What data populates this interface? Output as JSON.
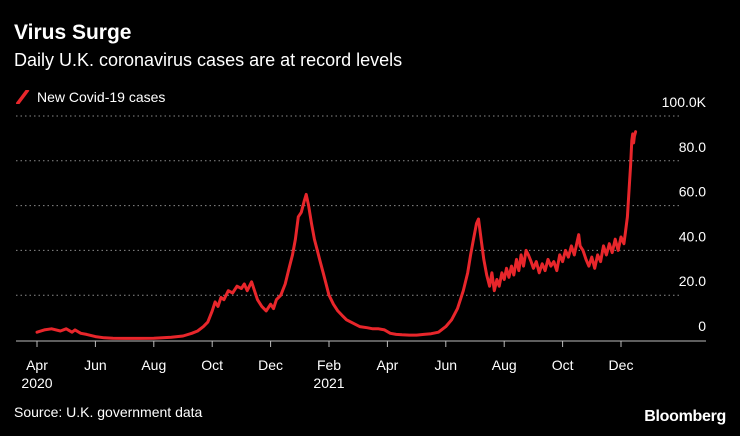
{
  "header": {
    "title": "Virus Surge",
    "subtitle": "Daily U.K. coronavirus cases are at record levels"
  },
  "footer": {
    "source": "Source: U.K. government data",
    "brand": "Bloomberg"
  },
  "colors": {
    "background": "#000000",
    "series": "#e8262b",
    "text": "#ffffff",
    "grid": "#8a8a8a"
  },
  "chart_data": {
    "type": "line",
    "title": "Virus Surge",
    "subtitle": "Daily U.K. coronavirus cases are at record levels",
    "xlabel": "",
    "ylabel": "",
    "y_unit": "thousands of cases",
    "ylim": [
      0,
      100
    ],
    "grid": true,
    "y_axis_side": "right",
    "legend": "top-left",
    "y_ticks": [
      {
        "value": 0,
        "label": "0"
      },
      {
        "value": 20,
        "label": "20.0"
      },
      {
        "value": 40,
        "label": "40.0"
      },
      {
        "value": 60,
        "label": "60.0"
      },
      {
        "value": 80,
        "label": "80.0"
      },
      {
        "value": 100,
        "label": "100.0K"
      }
    ],
    "x_ticks": [
      {
        "month": 0,
        "label": "Apr",
        "year": "2020"
      },
      {
        "month": 2,
        "label": "Jun",
        "year": ""
      },
      {
        "month": 4,
        "label": "Aug",
        "year": ""
      },
      {
        "month": 6,
        "label": "Oct",
        "year": ""
      },
      {
        "month": 8,
        "label": "Dec",
        "year": ""
      },
      {
        "month": 10,
        "label": "Feb",
        "year": "2021"
      },
      {
        "month": 12,
        "label": "Apr",
        "year": ""
      },
      {
        "month": 14,
        "label": "Jun",
        "year": ""
      },
      {
        "month": 16,
        "label": "Aug",
        "year": ""
      },
      {
        "month": 18,
        "label": "Oct",
        "year": ""
      },
      {
        "month": 20,
        "label": "Dec",
        "year": ""
      }
    ],
    "xlim_months": [
      0,
      21.3
    ],
    "series": [
      {
        "name": "New Covid-19 cases",
        "color": "#e8262b",
        "note": "x = months since 1 Apr 2020, y = daily new cases in thousands",
        "points": [
          [
            0.0,
            3.5
          ],
          [
            0.25,
            4.5
          ],
          [
            0.5,
            5.0
          ],
          [
            0.8,
            4.0
          ],
          [
            1.0,
            5.0
          ],
          [
            1.2,
            3.5
          ],
          [
            1.3,
            4.5
          ],
          [
            1.5,
            3.0
          ],
          [
            1.7,
            2.5
          ],
          [
            2.0,
            1.5
          ],
          [
            2.3,
            1.0
          ],
          [
            2.6,
            0.8
          ],
          [
            3.0,
            0.7
          ],
          [
            3.5,
            0.7
          ],
          [
            4.0,
            0.8
          ],
          [
            4.3,
            1.0
          ],
          [
            4.6,
            1.2
          ],
          [
            5.0,
            1.8
          ],
          [
            5.3,
            3.0
          ],
          [
            5.5,
            4.0
          ],
          [
            5.7,
            6.0
          ],
          [
            5.85,
            8.0
          ],
          [
            6.0,
            13.0
          ],
          [
            6.1,
            17.0
          ],
          [
            6.2,
            15.0
          ],
          [
            6.3,
            19.0
          ],
          [
            6.4,
            18.0
          ],
          [
            6.55,
            22.0
          ],
          [
            6.7,
            21.0
          ],
          [
            6.85,
            24.0
          ],
          [
            7.0,
            23.0
          ],
          [
            7.1,
            25.0
          ],
          [
            7.2,
            22.0
          ],
          [
            7.35,
            26.0
          ],
          [
            7.45,
            22.0
          ],
          [
            7.55,
            18.0
          ],
          [
            7.7,
            15.0
          ],
          [
            7.85,
            13.0
          ],
          [
            8.0,
            16.0
          ],
          [
            8.1,
            14.0
          ],
          [
            8.2,
            18.0
          ],
          [
            8.35,
            20.0
          ],
          [
            8.5,
            25.0
          ],
          [
            8.65,
            33.0
          ],
          [
            8.75,
            38.0
          ],
          [
            8.85,
            45.0
          ],
          [
            8.95,
            55.0
          ],
          [
            9.05,
            57.0
          ],
          [
            9.15,
            62.0
          ],
          [
            9.22,
            65.0
          ],
          [
            9.3,
            60.0
          ],
          [
            9.4,
            52.0
          ],
          [
            9.5,
            45.0
          ],
          [
            9.6,
            40.0
          ],
          [
            9.7,
            35.0
          ],
          [
            9.8,
            30.0
          ],
          [
            9.9,
            25.0
          ],
          [
            10.0,
            20.0
          ],
          [
            10.15,
            16.0
          ],
          [
            10.3,
            13.0
          ],
          [
            10.45,
            11.0
          ],
          [
            10.6,
            9.0
          ],
          [
            10.75,
            8.0
          ],
          [
            10.9,
            7.0
          ],
          [
            11.05,
            6.0
          ],
          [
            11.3,
            5.5
          ],
          [
            11.5,
            5.0
          ],
          [
            11.7,
            5.0
          ],
          [
            11.9,
            4.5
          ],
          [
            12.1,
            3.0
          ],
          [
            12.3,
            2.5
          ],
          [
            12.5,
            2.3
          ],
          [
            12.75,
            2.2
          ],
          [
            13.0,
            2.2
          ],
          [
            13.25,
            2.5
          ],
          [
            13.5,
            2.8
          ],
          [
            13.75,
            3.5
          ],
          [
            14.0,
            6.0
          ],
          [
            14.2,
            9.0
          ],
          [
            14.4,
            14.0
          ],
          [
            14.6,
            22.0
          ],
          [
            14.75,
            30.0
          ],
          [
            14.85,
            38.0
          ],
          [
            14.95,
            45.0
          ],
          [
            15.05,
            52.0
          ],
          [
            15.12,
            54.0
          ],
          [
            15.22,
            44.0
          ],
          [
            15.3,
            36.0
          ],
          [
            15.4,
            29.0
          ],
          [
            15.5,
            24.0
          ],
          [
            15.58,
            30.0
          ],
          [
            15.66,
            22.0
          ],
          [
            15.75,
            27.0
          ],
          [
            15.83,
            24.0
          ],
          [
            15.92,
            30.0
          ],
          [
            16.0,
            27.0
          ],
          [
            16.08,
            32.0
          ],
          [
            16.16,
            28.0
          ],
          [
            16.25,
            33.0
          ],
          [
            16.33,
            29.0
          ],
          [
            16.42,
            36.0
          ],
          [
            16.5,
            31.0
          ],
          [
            16.58,
            38.0
          ],
          [
            16.66,
            33.0
          ],
          [
            16.75,
            40.0
          ],
          [
            16.83,
            38.0
          ],
          [
            16.92,
            35.0
          ],
          [
            17.0,
            32.0
          ],
          [
            17.1,
            35.0
          ],
          [
            17.2,
            30.0
          ],
          [
            17.3,
            34.0
          ],
          [
            17.4,
            31.0
          ],
          [
            17.5,
            36.0
          ],
          [
            17.6,
            33.0
          ],
          [
            17.7,
            35.0
          ],
          [
            17.8,
            31.0
          ],
          [
            17.9,
            38.0
          ],
          [
            18.0,
            35.0
          ],
          [
            18.1,
            40.0
          ],
          [
            18.2,
            37.0
          ],
          [
            18.3,
            42.0
          ],
          [
            18.4,
            38.0
          ],
          [
            18.5,
            44.0
          ],
          [
            18.55,
            47.0
          ],
          [
            18.6,
            42.0
          ],
          [
            18.7,
            40.0
          ],
          [
            18.8,
            36.0
          ],
          [
            18.9,
            33.0
          ],
          [
            19.0,
            37.0
          ],
          [
            19.1,
            32.0
          ],
          [
            19.2,
            38.0
          ],
          [
            19.3,
            35.0
          ],
          [
            19.4,
            42.0
          ],
          [
            19.5,
            38.0
          ],
          [
            19.6,
            43.0
          ],
          [
            19.7,
            39.0
          ],
          [
            19.8,
            45.0
          ],
          [
            19.9,
            40.0
          ],
          [
            20.0,
            46.0
          ],
          [
            20.1,
            43.0
          ],
          [
            20.15,
            48.0
          ],
          [
            20.22,
            55.0
          ],
          [
            20.28,
            68.0
          ],
          [
            20.33,
            78.0
          ],
          [
            20.37,
            89.0
          ],
          [
            20.4,
            92.0
          ],
          [
            20.43,
            88.0
          ],
          [
            20.46,
            91.0
          ],
          [
            20.5,
            93.0
          ]
        ]
      }
    ]
  }
}
